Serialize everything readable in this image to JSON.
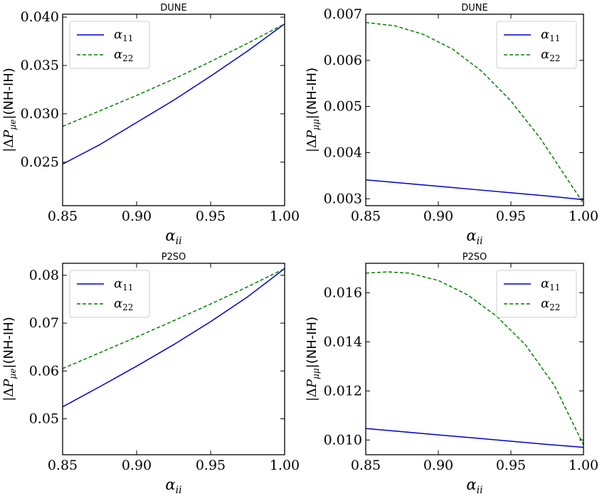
{
  "chart_data": [
    {
      "type": "line",
      "title": "DUNE",
      "xlabel_main": "α",
      "xlabel_sub": "ii",
      "ylabel_pre": "|ΔP",
      "ylabel_sub": "μe",
      "ylabel_post": "|(NH-IH)",
      "xlim": [
        0.85,
        1.0
      ],
      "ylim": [
        0.0205,
        0.0403
      ],
      "xticks": [
        0.85,
        0.9,
        0.95,
        1.0
      ],
      "xtick_labels": [
        "0.85",
        "0.90",
        "0.95",
        "1.00"
      ],
      "yticks": [
        0.025,
        0.03,
        0.035,
        0.04
      ],
      "ytick_labels": [
        "0.025",
        "0.030",
        "0.035",
        "0.040"
      ],
      "legend_position": "upper-left",
      "series": [
        {
          "name_main": "α",
          "name_sub": "11",
          "color": "#0000cc",
          "style": "solid",
          "x": [
            0.85,
            0.875,
            0.9,
            0.925,
            0.95,
            0.975,
            1.0
          ],
          "y": [
            0.0248,
            0.0268,
            0.0291,
            0.0314,
            0.0339,
            0.0365,
            0.0393
          ]
        },
        {
          "name_main": "α",
          "name_sub": "22",
          "color": "#008000",
          "style": "dashed",
          "x": [
            0.85,
            0.875,
            0.9,
            0.925,
            0.95,
            0.975,
            1.0
          ],
          "y": [
            0.0287,
            0.0303,
            0.0319,
            0.0336,
            0.0354,
            0.0373,
            0.0393
          ]
        }
      ]
    },
    {
      "type": "line",
      "title": "DUNE",
      "xlabel_main": "α",
      "xlabel_sub": "ii",
      "ylabel_pre": "|ΔP",
      "ylabel_sub": "μμ",
      "ylabel_post": "|(NH-IH)",
      "xlim": [
        0.85,
        1.0
      ],
      "ylim": [
        0.00285,
        0.007
      ],
      "xticks": [
        0.85,
        0.9,
        0.95,
        1.0
      ],
      "xtick_labels": [
        "0.85",
        "0.90",
        "0.95",
        "1.00"
      ],
      "yticks": [
        0.003,
        0.004,
        0.005,
        0.006,
        0.007
      ],
      "ytick_labels": [
        "0.003",
        "0.004",
        "0.005",
        "0.006",
        "0.007"
      ],
      "legend_position": "upper-right",
      "series": [
        {
          "name_main": "α",
          "name_sub": "11",
          "color": "#0000cc",
          "style": "solid",
          "x": [
            0.85,
            0.875,
            0.9,
            0.925,
            0.95,
            0.975,
            1.0
          ],
          "y": [
            0.00341,
            0.00334,
            0.00327,
            0.0032,
            0.00313,
            0.00306,
            0.00298
          ]
        },
        {
          "name_main": "α",
          "name_sub": "22",
          "color": "#008000",
          "style": "dashed",
          "x": [
            0.85,
            0.87,
            0.89,
            0.91,
            0.93,
            0.95,
            0.97,
            0.99,
            1.0
          ],
          "y": [
            0.00682,
            0.00675,
            0.00656,
            0.00624,
            0.00576,
            0.00512,
            0.00432,
            0.00337,
            0.0029
          ]
        }
      ]
    },
    {
      "type": "line",
      "title": "P2SO",
      "xlabel_main": "α",
      "xlabel_sub": "ii",
      "ylabel_pre": "|ΔP",
      "ylabel_sub": "μe",
      "ylabel_post": "|(NH-IH)",
      "xlim": [
        0.85,
        1.0
      ],
      "ylim": [
        0.0425,
        0.0825
      ],
      "xticks": [
        0.85,
        0.9,
        0.95,
        1.0
      ],
      "xtick_labels": [
        "0.85",
        "0.90",
        "0.95",
        "1.00"
      ],
      "yticks": [
        0.05,
        0.06,
        0.07,
        0.08
      ],
      "ytick_labels": [
        "0.05",
        "0.06",
        "0.07",
        "0.08"
      ],
      "legend_position": "upper-left",
      "series": [
        {
          "name_main": "α",
          "name_sub": "11",
          "color": "#0000cc",
          "style": "solid",
          "x": [
            0.85,
            0.875,
            0.9,
            0.925,
            0.95,
            0.975,
            1.0
          ],
          "y": [
            0.0525,
            0.0567,
            0.061,
            0.0655,
            0.0703,
            0.0755,
            0.0814
          ]
        },
        {
          "name_main": "α",
          "name_sub": "22",
          "color": "#008000",
          "style": "dashed",
          "x": [
            0.85,
            0.875,
            0.9,
            0.925,
            0.95,
            0.975,
            1.0
          ],
          "y": [
            0.0605,
            0.0638,
            0.0671,
            0.0705,
            0.074,
            0.0776,
            0.0814
          ]
        }
      ]
    },
    {
      "type": "line",
      "title": "P2SO",
      "xlabel_main": "α",
      "xlabel_sub": "ii",
      "ylabel_pre": "|ΔP",
      "ylabel_sub": "μμ",
      "ylabel_post": "|(NH-IH)",
      "xlim": [
        0.85,
        1.0
      ],
      "ylim": [
        0.0094,
        0.0172
      ],
      "xticks": [
        0.85,
        0.9,
        0.95,
        1.0
      ],
      "xtick_labels": [
        "0.85",
        "0.90",
        "0.95",
        "1.00"
      ],
      "yticks": [
        0.01,
        0.012,
        0.014,
        0.016
      ],
      "ytick_labels": [
        "0.010",
        "0.012",
        "0.014",
        "0.016"
      ],
      "legend_position": "upper-right",
      "series": [
        {
          "name_main": "α",
          "name_sub": "11",
          "color": "#0000cc",
          "style": "solid",
          "x": [
            0.85,
            0.875,
            0.9,
            0.925,
            0.95,
            0.975,
            1.0
          ],
          "y": [
            0.01047,
            0.01034,
            0.01021,
            0.01008,
            0.00995,
            0.00982,
            0.0097
          ]
        },
        {
          "name_main": "α",
          "name_sub": "22",
          "color": "#008000",
          "style": "dashed",
          "x": [
            0.85,
            0.865,
            0.88,
            0.9,
            0.92,
            0.94,
            0.96,
            0.98,
            1.0
          ],
          "y": [
            0.0168,
            0.01685,
            0.0168,
            0.0165,
            0.01592,
            0.01505,
            0.01388,
            0.01222,
            0.0098
          ]
        }
      ]
    }
  ]
}
